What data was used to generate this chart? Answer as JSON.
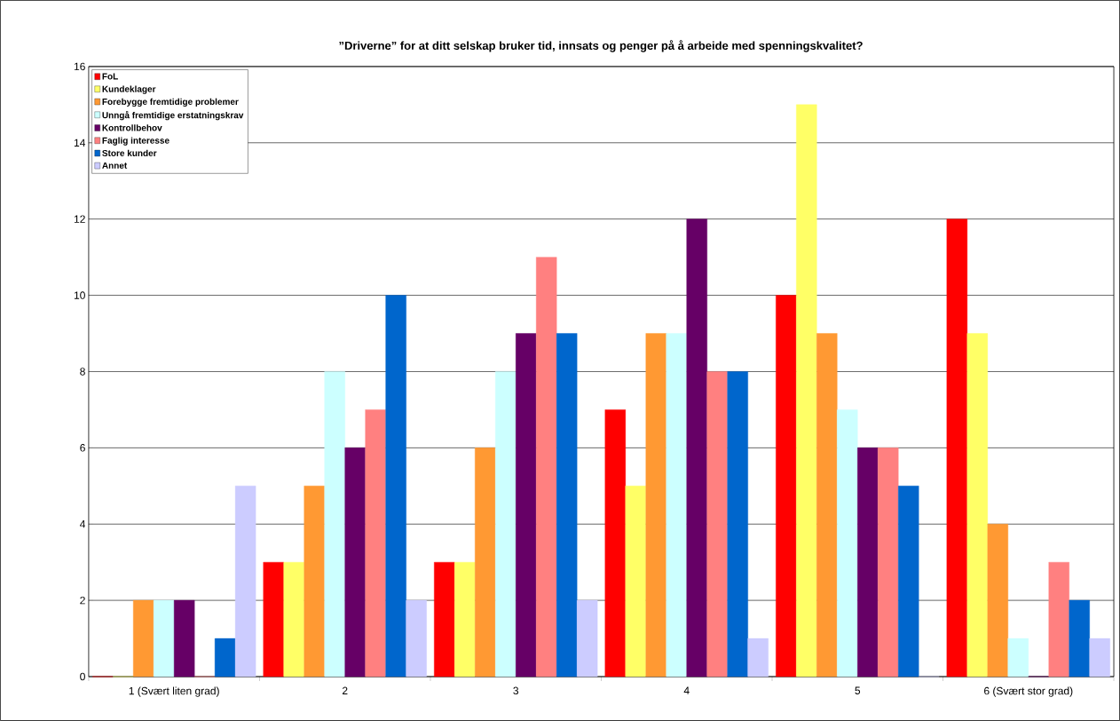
{
  "chart_data": {
    "type": "bar",
    "title": "”Driverne” for at ditt selskap bruker tid, innsats og penger på å arbeide med spenningskvalitet?",
    "categories": [
      "1 (Svært liten grad)",
      "2",
      "3",
      "4",
      "5",
      "6 (Svært stor grad)"
    ],
    "series": [
      {
        "name": "FoL",
        "color": "#ff0000",
        "values": [
          0,
          3,
          3,
          7,
          10,
          12
        ]
      },
      {
        "name": "Kundeklager",
        "color": "#ffff66",
        "values": [
          0,
          3,
          3,
          5,
          15,
          9
        ]
      },
      {
        "name": "Forebygge fremtidige problemer",
        "color": "#ff9933",
        "values": [
          2,
          5,
          6,
          9,
          9,
          4
        ]
      },
      {
        "name": "Unngå fremtidige erstatningskrav",
        "color": "#ccffff",
        "values": [
          2,
          8,
          8,
          9,
          7,
          1
        ]
      },
      {
        "name": "Kontrollbehov",
        "color": "#660066",
        "values": [
          2,
          6,
          9,
          12,
          6,
          0
        ]
      },
      {
        "name": "Faglig interesse",
        "color": "#ff8080",
        "values": [
          0,
          7,
          11,
          8,
          6,
          3
        ]
      },
      {
        "name": "Store kunder",
        "color": "#0066cc",
        "values": [
          1,
          10,
          9,
          8,
          5,
          2
        ]
      },
      {
        "name": "Annet",
        "color": "#ccccff",
        "values": [
          5,
          2,
          2,
          1,
          0,
          1
        ]
      }
    ],
    "ylim": [
      0,
      16
    ],
    "yticks": [
      0,
      2,
      4,
      6,
      8,
      10,
      12,
      14,
      16
    ],
    "grid": "y",
    "legend": "top left"
  }
}
